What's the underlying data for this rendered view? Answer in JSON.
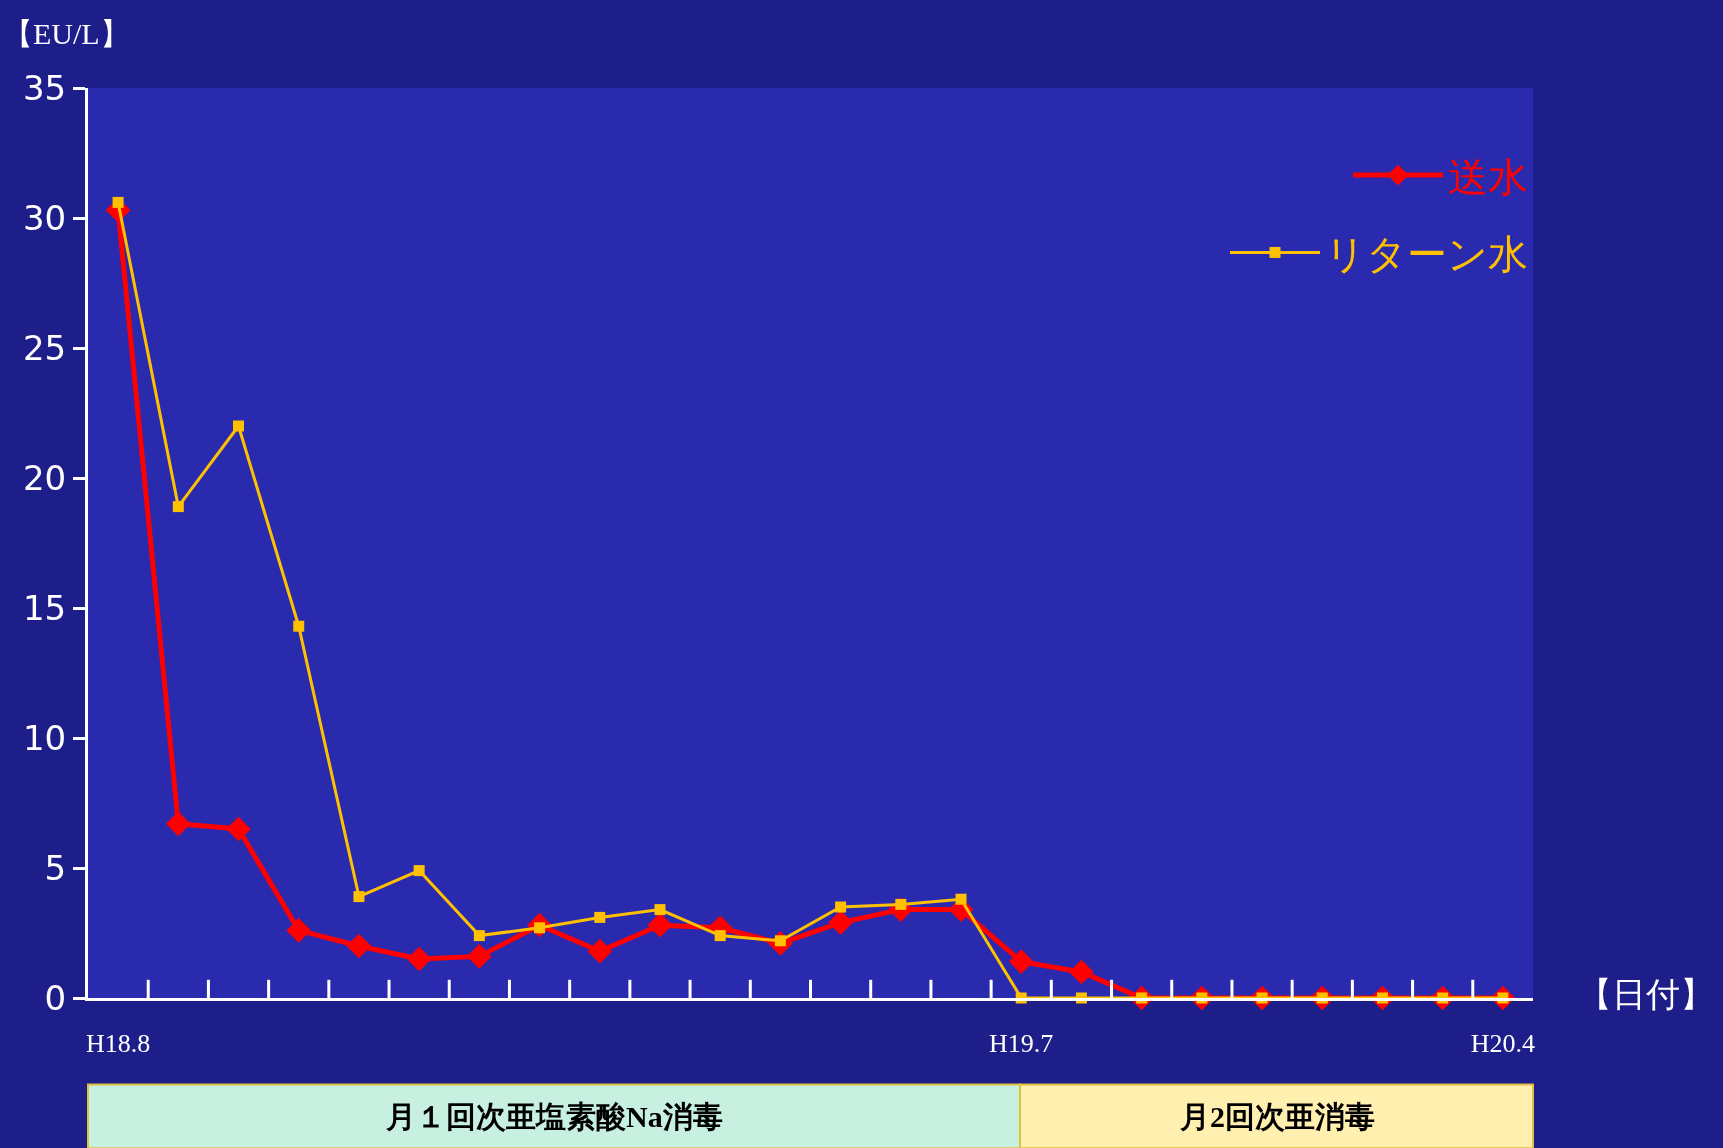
{
  "chart_data": {
    "type": "line",
    "ylabel": "【EU/L】",
    "xlabel": "【日付】",
    "categories": [
      "H18.8",
      null,
      null,
      null,
      null,
      null,
      null,
      null,
      null,
      null,
      null,
      null,
      null,
      null,
      null,
      "H19.7",
      null,
      null,
      null,
      null,
      null,
      null,
      null,
      "H20.4"
    ],
    "series": [
      {
        "name": "送水",
        "color": "#ff0000",
        "marker": "diamond",
        "values": [
          30.3,
          6.7,
          6.5,
          2.6,
          2.0,
          1.5,
          1.6,
          2.8,
          1.8,
          2.8,
          2.7,
          2.1,
          2.9,
          3.4,
          3.4,
          1.4,
          1.0,
          0,
          0,
          0,
          0,
          0,
          0,
          0
        ]
      },
      {
        "name": "リターン水",
        "color": "#ffc000",
        "marker": "square",
        "values": [
          30.6,
          18.9,
          22.0,
          14.3,
          3.9,
          4.9,
          2.4,
          2.7,
          3.1,
          3.4,
          2.4,
          2.2,
          3.5,
          3.6,
          3.8,
          0,
          0,
          0,
          0,
          0,
          0,
          0,
          0,
          0
        ]
      }
    ],
    "ylim": [
      0,
      35
    ],
    "yticks": [
      0,
      5,
      10,
      15,
      20,
      25,
      30,
      35
    ],
    "grid": false,
    "legend": "top right",
    "line_style": "solid",
    "annotations": [
      "月１回次亜塩素酸Na消毒",
      "月2回次亜消毒"
    ]
  }
}
